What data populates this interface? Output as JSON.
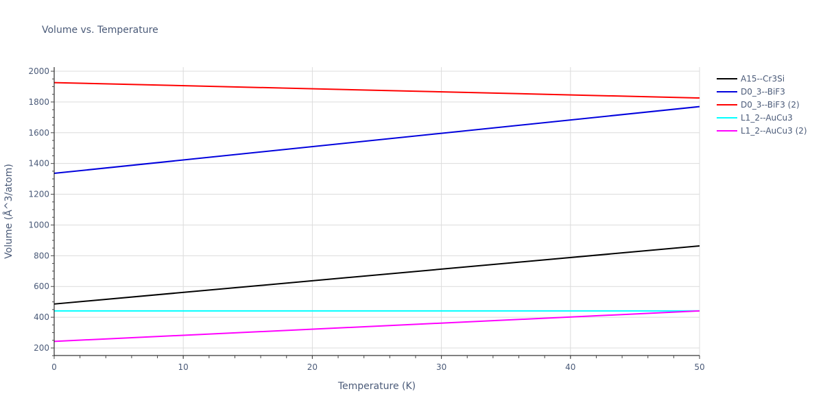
{
  "title": "Volume vs. Temperature",
  "chart_data": {
    "type": "line",
    "title": "Volume vs. Temperature",
    "xlabel": "Temperature (K)",
    "ylabel": "Volume (Å^3/atom)",
    "xlim": [
      0,
      50
    ],
    "ylim": [
      150,
      2020
    ],
    "xticks": [
      0,
      10,
      20,
      30,
      40,
      50
    ],
    "yticks": [
      200,
      400,
      600,
      800,
      1000,
      1200,
      1400,
      1600,
      1800,
      2000
    ],
    "grid": true,
    "legend_position": "right-top",
    "x": [
      0,
      50
    ],
    "series": [
      {
        "name": "A15--Cr3Si",
        "color": "#000000",
        "values": [
          486,
          864
        ]
      },
      {
        "name": "D0_3--BiF3",
        "color": "#0000dd",
        "values": [
          1336,
          1770
        ]
      },
      {
        "name": "D0_3--BiF3 (2)",
        "color": "#ff0000",
        "values": [
          1926,
          1826
        ]
      },
      {
        "name": "L1_2--AuCu3",
        "color": "#00ffff",
        "values": [
          441,
          441
        ]
      },
      {
        "name": "L1_2--AuCu3 (2)",
        "color": "#ff00ff",
        "values": [
          243,
          441
        ]
      }
    ]
  }
}
